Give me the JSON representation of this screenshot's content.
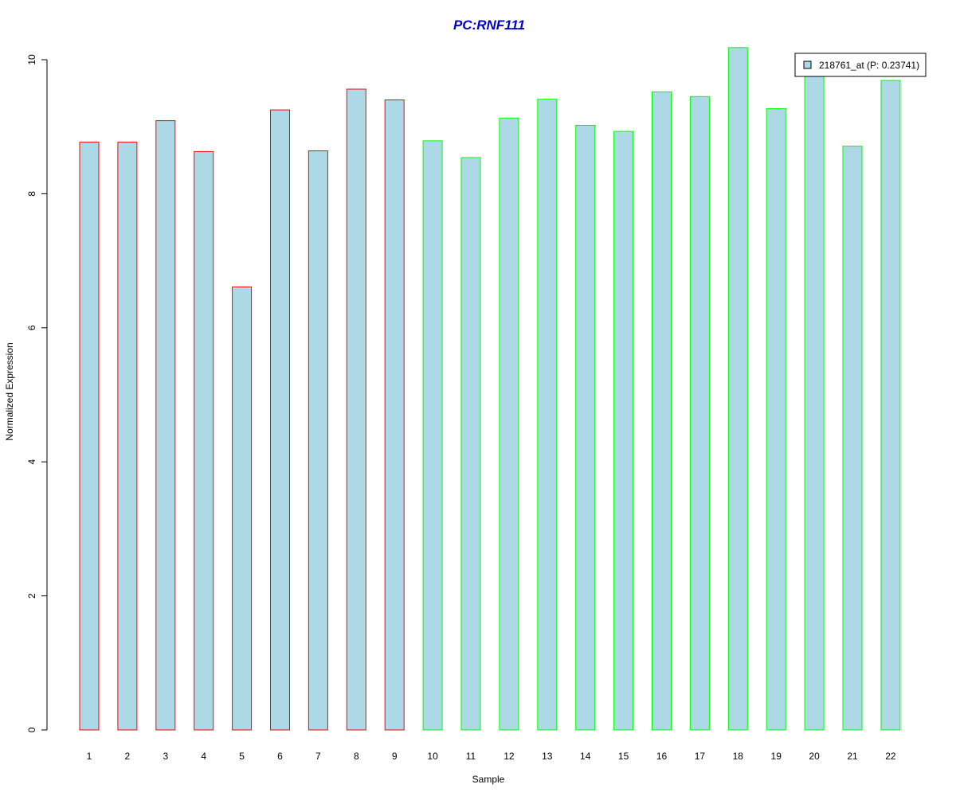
{
  "chart_data": {
    "type": "bar",
    "title": "PC:RNF111",
    "xlabel": "Sample",
    "ylabel": "Normalized Expression",
    "ylim": [
      0,
      10
    ],
    "yticks": [
      0,
      2,
      4,
      6,
      8,
      10
    ],
    "grid": false,
    "categories": [
      "1",
      "2",
      "3",
      "4",
      "5",
      "6",
      "7",
      "8",
      "9",
      "10",
      "11",
      "12",
      "13",
      "14",
      "15",
      "16",
      "17",
      "18",
      "19",
      "20",
      "21",
      "22"
    ],
    "series": [
      {
        "name": "218761_at (P: 0.23741)",
        "fill": "#add8e6",
        "values": [
          8.77,
          8.77,
          9.09,
          8.63,
          6.61,
          9.25,
          8.64,
          9.56,
          9.4,
          8.79,
          8.54,
          9.13,
          9.41,
          9.02,
          8.93,
          9.52,
          9.45,
          10.18,
          9.27,
          9.85,
          8.71,
          9.69
        ]
      }
    ],
    "groups": [
      {
        "samples": [
          "1",
          "2",
          "3",
          "4",
          "5",
          "6",
          "7",
          "8",
          "9"
        ],
        "color": "#ff0000"
      },
      {
        "samples": [
          "10",
          "11",
          "12",
          "13",
          "14",
          "15",
          "16",
          "17",
          "18",
          "19",
          "20",
          "21",
          "22"
        ],
        "color": "#00ff00"
      }
    ],
    "legend_position": "top-right",
    "title_color": "#0000cc"
  }
}
